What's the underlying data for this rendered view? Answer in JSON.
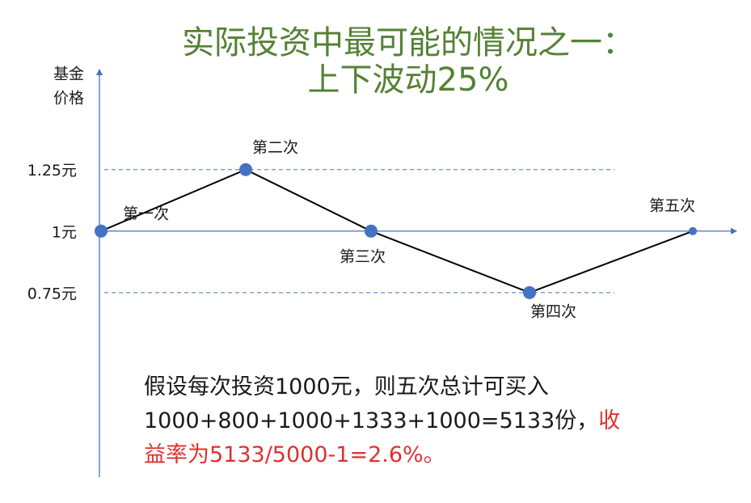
{
  "chart_data": {
    "type": "line",
    "title": [
      "实际投资中最可能的情况之一：",
      "上下波动25%"
    ],
    "title_color": "#548235",
    "y_label": [
      "基金",
      "价格"
    ],
    "categories": [
      "第一次",
      "第二次",
      "第三次",
      "第四次",
      "第五次"
    ],
    "values": [
      1,
      1.25,
      1,
      0.75,
      1
    ],
    "line_color": "#000000",
    "marker_color": "#4472c4",
    "axis_color": "#4472c4",
    "ylim": [
      0,
      1.66
    ],
    "yticks": [
      {
        "value": 1.25,
        "label": "1.25元"
      },
      {
        "value": 1,
        "label": "1元"
      },
      {
        "value": 0.75,
        "label": "0.75元"
      }
    ],
    "note": [
      [
        {
          "text": "假设每次投资1000元，则五次总计可买入",
          "color": "#1a1a1a"
        }
      ],
      [
        {
          "text": "1000+800+1000+1333+1000=5133份，",
          "color": "#1a1a1a"
        },
        {
          "text": "收",
          "color": "#e03030"
        }
      ],
      [
        {
          "text": "益率为5133/5000-1=2.6%。",
          "color": "#e03030"
        }
      ]
    ]
  }
}
